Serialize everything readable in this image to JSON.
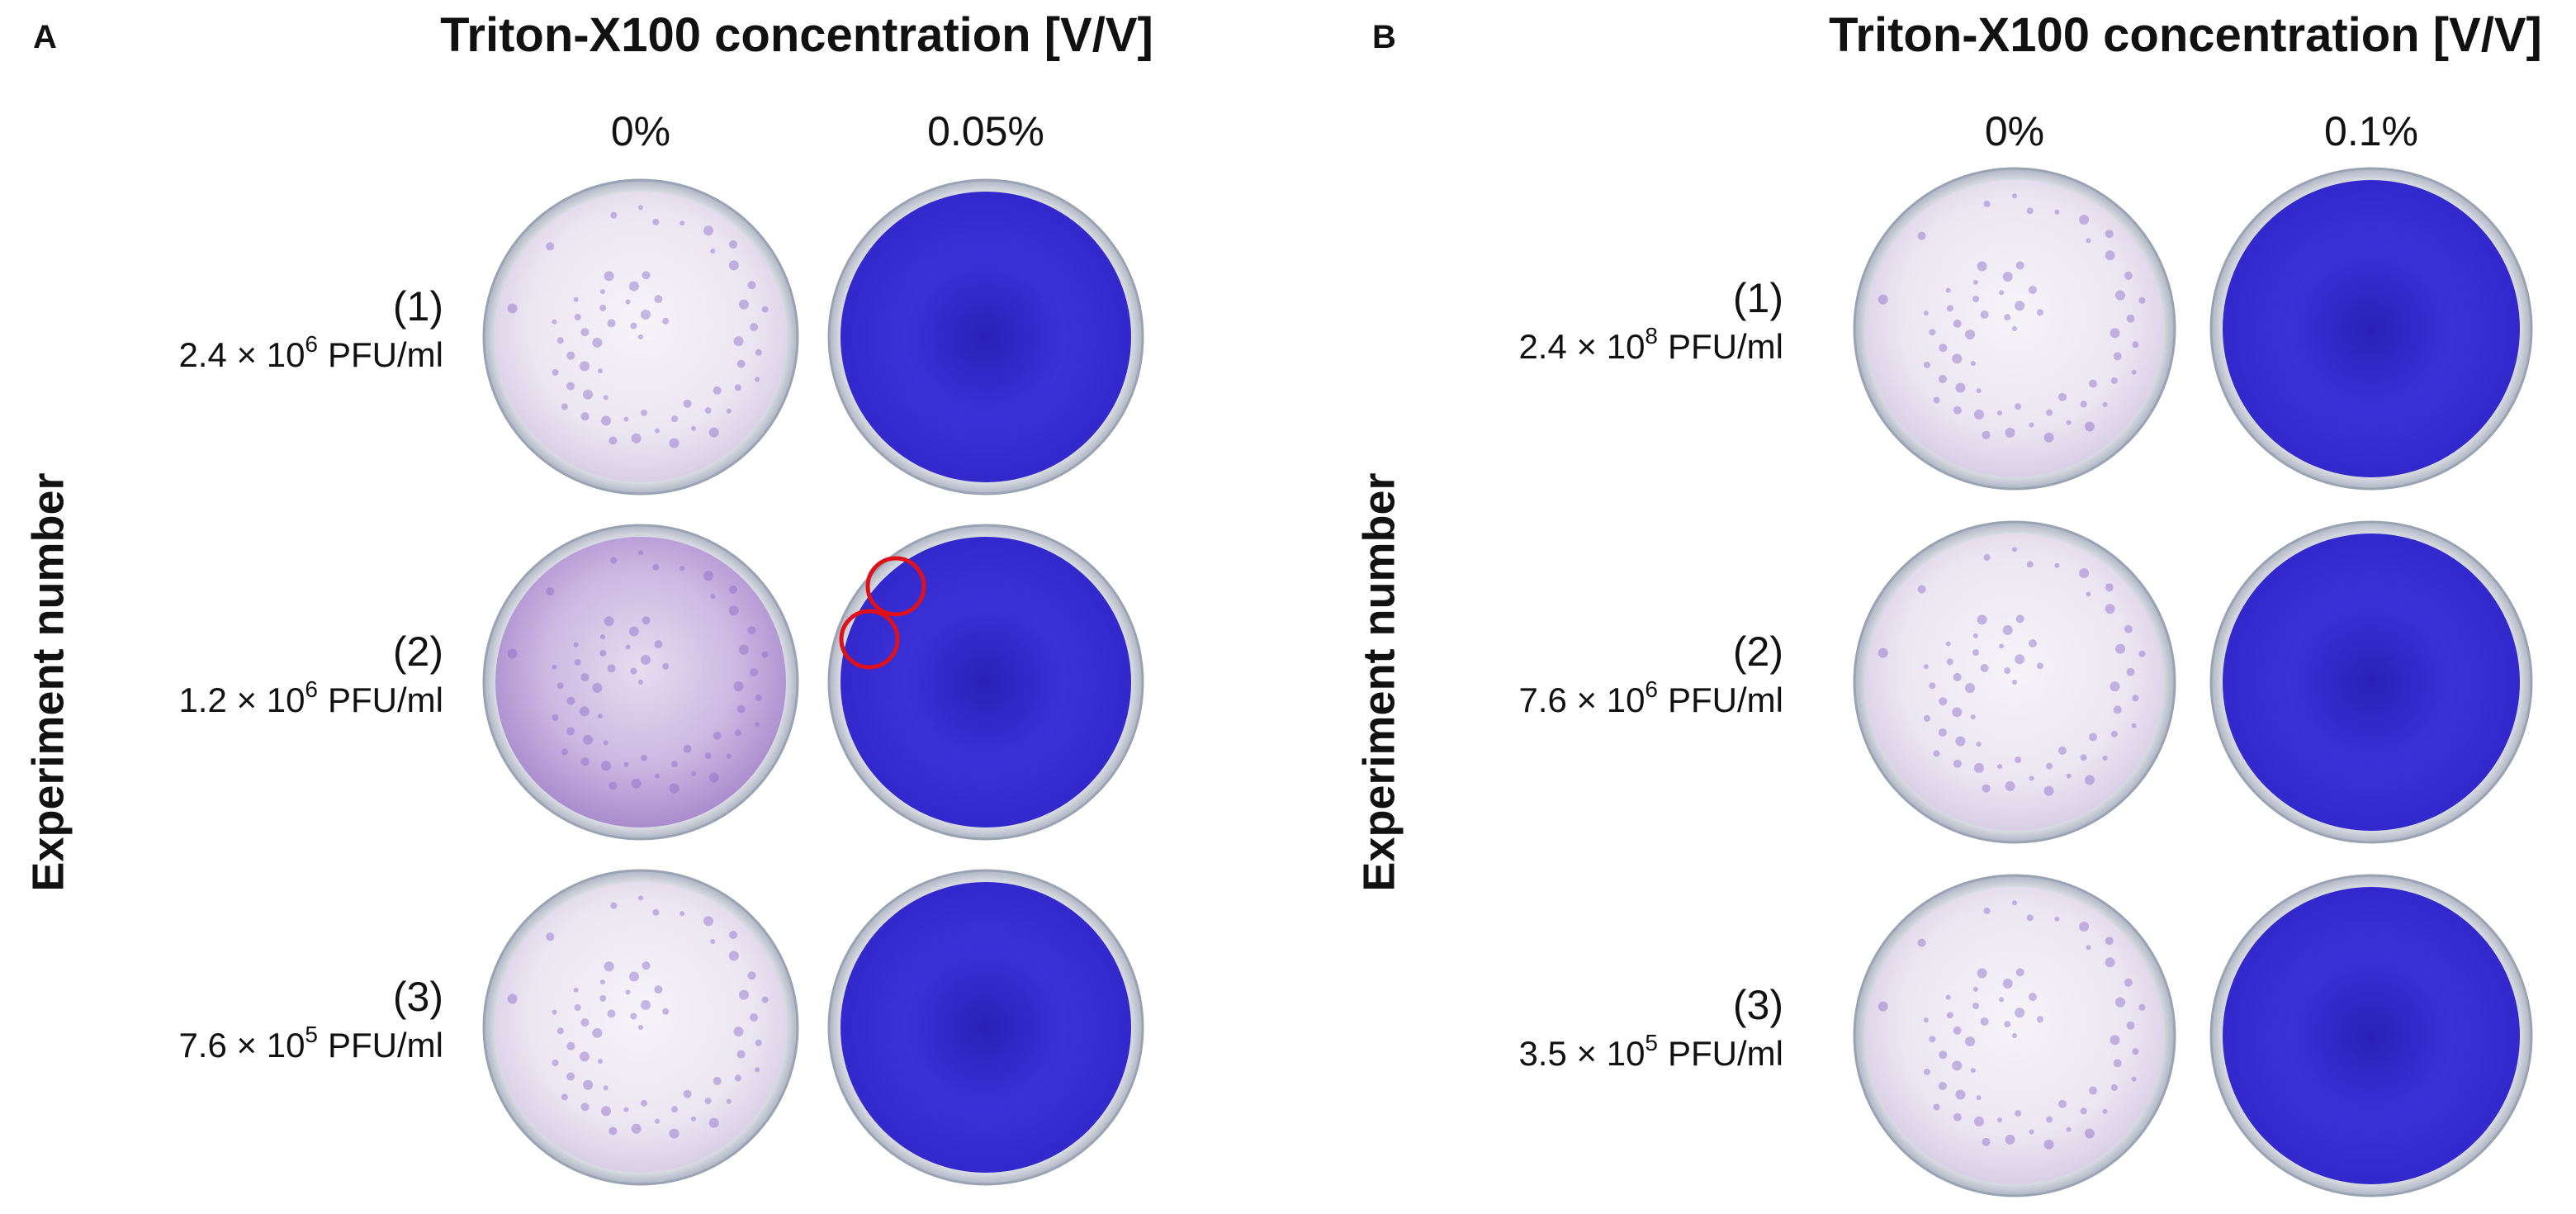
{
  "panels": [
    {
      "label": "A",
      "title": "Triton-X100 concentration [V/V]",
      "axis_label": "Experiment number",
      "columns": [
        "0%",
        "0.05%"
      ],
      "rows": [
        {
          "number": "(1)",
          "titer": "2.4 × 10",
          "exponent": "6",
          "unit": "PFU/ml"
        },
        {
          "number": "(2)",
          "titer": "1.2 × 10",
          "exponent": "6",
          "unit": "PFU/ml"
        },
        {
          "number": "(3)",
          "titer": "7.6 × 10",
          "exponent": "5",
          "unit": "PFU/ml"
        }
      ]
    },
    {
      "label": "B",
      "title": "Triton-X100 concentration [V/V]",
      "axis_label": "Experiment number",
      "columns": [
        "0%",
        "0.1%"
      ],
      "rows": [
        {
          "number": "(1)",
          "titer": "2.4 × 10",
          "exponent": "8",
          "unit": "PFU/ml"
        },
        {
          "number": "(2)",
          "titer": "7.6 × 10",
          "exponent": "6",
          "unit": "PFU/ml"
        },
        {
          "number": "(3)",
          "titer": "3.5 × 10",
          "exponent": "5",
          "unit": "PFU/ml"
        }
      ]
    }
  ]
}
